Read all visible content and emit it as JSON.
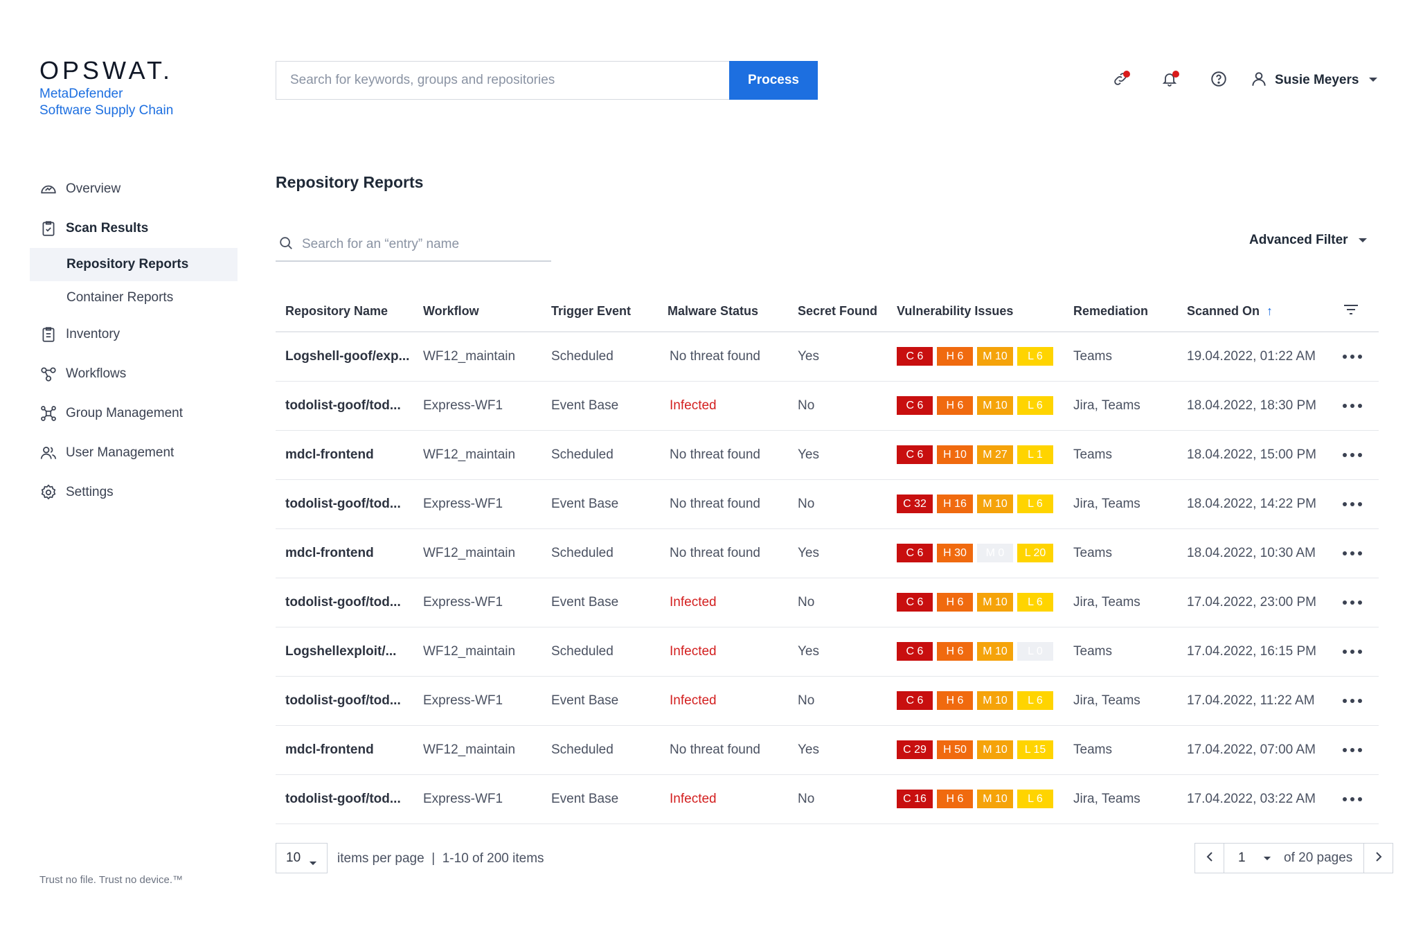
{
  "brand": {
    "logo": "OPSWAT.",
    "product_line1": "MetaDefender",
    "product_line2": "Software Supply Chain",
    "tagline": "Trust no file. Trust no device.™"
  },
  "header": {
    "search_placeholder": "Search for keywords, groups and repositories",
    "process_label": "Process",
    "user_name": "Susie Meyers"
  },
  "sidebar": {
    "overview": "Overview",
    "scan_results": "Scan Results",
    "repository_reports": "Repository Reports",
    "container_reports": "Container Reports",
    "inventory": "Inventory",
    "workflows": "Workflows",
    "group_management": "Group Management",
    "user_management": "User Management",
    "settings": "Settings"
  },
  "main": {
    "title": "Repository Reports",
    "entry_search_placeholder": "Search for an “entry” name",
    "advanced_filter": "Advanced Filter"
  },
  "table": {
    "columns": {
      "repo": "Repository Name",
      "workflow": "Workflow",
      "trigger": "Trigger Event",
      "malware": "Malware Status",
      "secret": "Secret Found",
      "vuln": "Vulnerability Issues",
      "remediation": "Remediation",
      "scanned": "Scanned On"
    },
    "rows": [
      {
        "repo": "Logshell-goof/exp...",
        "workflow": "WF12_maintain",
        "trigger": "Scheduled",
        "malware": "No threat found",
        "secret": "Yes",
        "c": "C 6",
        "h": "H 6",
        "m": "M 10",
        "l": "L 6",
        "remediation": "Teams",
        "scanned": "19.04.2022, 01:22 AM"
      },
      {
        "repo": "todolist-goof/tod...",
        "workflow": "Express-WF1",
        "trigger": "Event Base",
        "malware": "Infected",
        "secret": "No",
        "c": "C 6",
        "h": "H 6",
        "m": "M 10",
        "l": "L 6",
        "remediation": "Jira, Teams",
        "scanned": "18.04.2022, 18:30 PM"
      },
      {
        "repo": "mdcl-frontend",
        "workflow": "WF12_maintain",
        "trigger": "Scheduled",
        "malware": "No threat found",
        "secret": "Yes",
        "c": "C 6",
        "h": "H 10",
        "m": "M 27",
        "l": "L 1",
        "remediation": "Teams",
        "scanned": "18.04.2022, 15:00 PM"
      },
      {
        "repo": "todolist-goof/tod...",
        "workflow": "Express-WF1",
        "trigger": "Event Base",
        "malware": "No threat found",
        "secret": "No",
        "c": "C 32",
        "h": "H 16",
        "m": "M 10",
        "l": "L 6",
        "remediation": "Jira, Teams",
        "scanned": "18.04.2022, 14:22 PM"
      },
      {
        "repo": "mdcl-frontend",
        "workflow": "WF12_maintain",
        "trigger": "Scheduled",
        "malware": "No threat found",
        "secret": "Yes",
        "c": "C 6",
        "h": "H 30",
        "m": "M 0",
        "l": "L 20",
        "remediation": "Teams",
        "scanned": "18.04.2022, 10:30 AM"
      },
      {
        "repo": "todolist-goof/tod...",
        "workflow": "Express-WF1",
        "trigger": "Event Base",
        "malware": "Infected",
        "secret": "No",
        "c": "C 6",
        "h": "H 6",
        "m": "M 10",
        "l": "L 6",
        "remediation": "Jira, Teams",
        "scanned": "17.04.2022, 23:00 PM"
      },
      {
        "repo": "Logshellexploit/...",
        "workflow": "WF12_maintain",
        "trigger": "Scheduled",
        "malware": "Infected",
        "secret": "Yes",
        "c": "C 6",
        "h": "H 6",
        "m": "M 10",
        "l": "L 0",
        "remediation": "Teams",
        "scanned": "17.04.2022, 16:15 PM"
      },
      {
        "repo": "todolist-goof/tod...",
        "workflow": "Express-WF1",
        "trigger": "Event Base",
        "malware": "Infected",
        "secret": "No",
        "c": "C 6",
        "h": "H 6",
        "m": "M 10",
        "l": "L 6",
        "remediation": "Jira, Teams",
        "scanned": "17.04.2022, 11:22 AM"
      },
      {
        "repo": "mdcl-frontend",
        "workflow": "WF12_maintain",
        "trigger": "Scheduled",
        "malware": "No threat found",
        "secret": "Yes",
        "c": "C 29",
        "h": "H 50",
        "m": "M 10",
        "l": "L 15",
        "remediation": "Teams",
        "scanned": "17.04.2022, 07:00 AM"
      },
      {
        "repo": "todolist-goof/tod...",
        "workflow": "Express-WF1",
        "trigger": "Event Base",
        "malware": "Infected",
        "secret": "No",
        "c": "C 16",
        "h": "H 6",
        "m": "M 10",
        "l": "L 6",
        "remediation": "Jira, Teams",
        "scanned": "17.04.2022, 03:22 AM"
      }
    ]
  },
  "pagination": {
    "per_page": "10",
    "summary": "items per page  |  1-10 of 200 items",
    "page": "1",
    "of_pages": "of 20 pages"
  },
  "colors": {
    "accent": "#1d6fe0",
    "critical": "#c80f0f",
    "high": "#f06a0f",
    "medium": "#f5a30a",
    "low": "#ffd400",
    "infected": "#d31f1f"
  }
}
